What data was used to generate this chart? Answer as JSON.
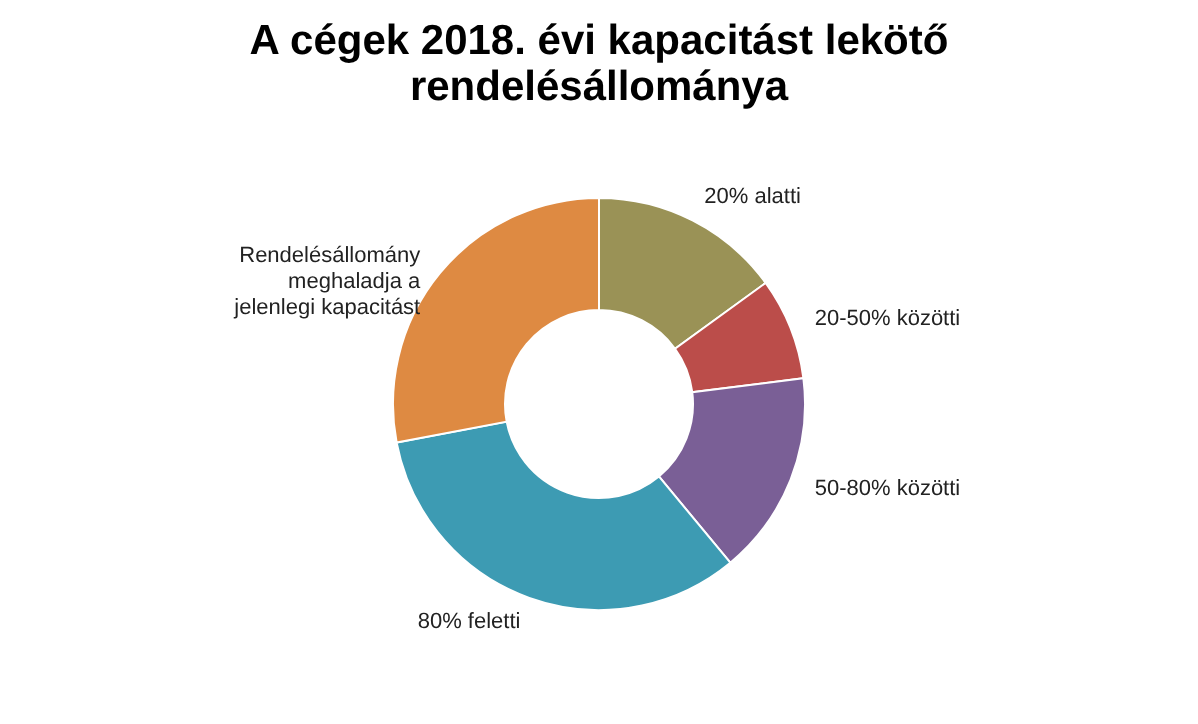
{
  "chart_data": {
    "type": "donut",
    "title": [
      "A cégek 2018. évi kapacitást lekötő",
      "rendelésállománya"
    ],
    "categories": [
      "20% alatti",
      "20-50% közötti",
      "50-80% közötti",
      "80% feletti",
      "Rendelésállomány\nmeghaladja a\njelenlegi kapacitást"
    ],
    "values": [
      15,
      8,
      16,
      33,
      28
    ],
    "colors": [
      "#9a9256",
      "#bb4d4a",
      "#7a5f96",
      "#3d9bb3",
      "#de8a42"
    ],
    "legend": false
  }
}
